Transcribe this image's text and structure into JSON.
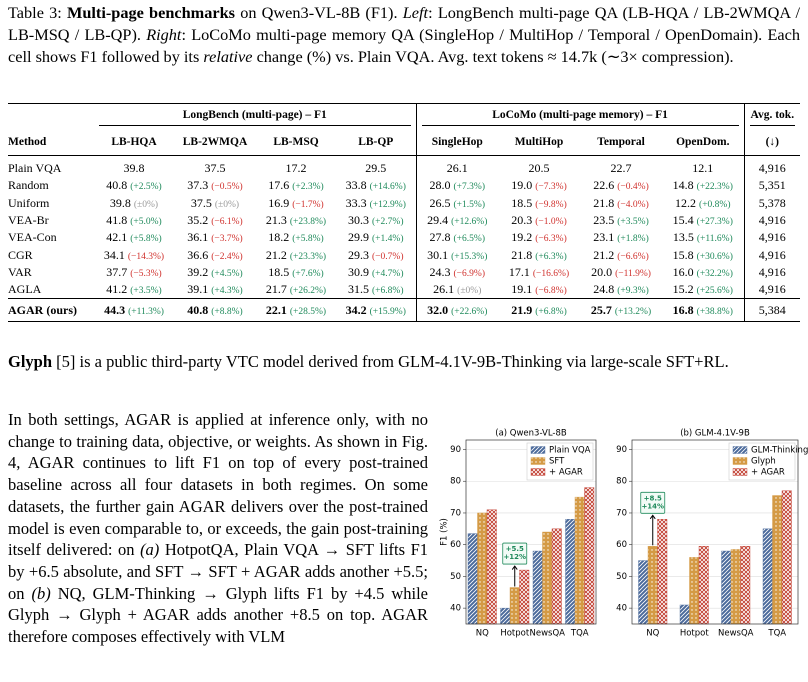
{
  "caption": [
    "Table 3: ",
    "Multi-page benchmarks",
    " on Qwen3-VL-8B (F1). ",
    "Left",
    ": LongBench multi-page QA (LB-HQA / LB-2WMQA / LB-MSQ / LB-QP). ",
    "Right",
    ": LoCoMo multi-page memory QA (SingleHop / MultiHop / Temporal / OpenDomain). Each cell shows F1 followed by its ",
    "relative",
    " change (%) vs. Plain VQA. Avg. text tokens ≈ 14.7k (∼3× compression)."
  ],
  "table": {
    "groups": [
      "LongBench (multi-page) – F1",
      "LoCoMo (multi-page memory) – F1",
      "Avg. tok."
    ],
    "columns": [
      "Method",
      "LB-HQA",
      "LB-2WMQA",
      "LB-MSQ",
      "LB-QP",
      "SingleHop",
      "MultiHop",
      "Temporal",
      "OpenDom.",
      "(↓)"
    ],
    "rows": [
      {
        "method": "Plain VQA",
        "cells": [
          {
            "f1": "39.8"
          },
          {
            "f1": "37.5"
          },
          {
            "f1": "17.2"
          },
          {
            "f1": "29.5"
          },
          {
            "f1": "26.1"
          },
          {
            "f1": "20.5"
          },
          {
            "f1": "22.7"
          },
          {
            "f1": "12.1"
          }
        ],
        "tokens": "4,916"
      },
      {
        "method": "Random",
        "cells": [
          {
            "f1": "40.8",
            "change": "(+2.5%)"
          },
          {
            "f1": "37.3",
            "change": "(−0.5%)"
          },
          {
            "f1": "17.6",
            "change": "(+2.3%)"
          },
          {
            "f1": "33.8",
            "change": "(+14.6%)"
          },
          {
            "f1": "28.0",
            "change": "(+7.3%)"
          },
          {
            "f1": "19.0",
            "change": "(−7.3%)"
          },
          {
            "f1": "22.6",
            "change": "(−0.4%)"
          },
          {
            "f1": "14.8",
            "change": "(+22.3%)"
          }
        ],
        "tokens": "5,351"
      },
      {
        "method": "Uniform",
        "cells": [
          {
            "f1": "39.8",
            "change": "(±0%)"
          },
          {
            "f1": "37.5",
            "change": "(±0%)"
          },
          {
            "f1": "16.9",
            "change": "(−1.7%)"
          },
          {
            "f1": "33.3",
            "change": "(+12.9%)"
          },
          {
            "f1": "26.5",
            "change": "(+1.5%)"
          },
          {
            "f1": "18.5",
            "change": "(−9.8%)"
          },
          {
            "f1": "21.8",
            "change": "(−4.0%)"
          },
          {
            "f1": "12.2",
            "change": "(+0.8%)"
          }
        ],
        "tokens": "5,378"
      },
      {
        "method": "VEA-Br",
        "cells": [
          {
            "f1": "41.8",
            "change": "(+5.0%)"
          },
          {
            "f1": "35.2",
            "change": "(−6.1%)"
          },
          {
            "f1": "21.3",
            "change": "(+23.8%)"
          },
          {
            "f1": "30.3",
            "change": "(+2.7%)"
          },
          {
            "f1": "29.4",
            "change": "(+12.6%)"
          },
          {
            "f1": "20.3",
            "change": "(−1.0%)"
          },
          {
            "f1": "23.5",
            "change": "(+3.5%)"
          },
          {
            "f1": "15.4",
            "change": "(+27.3%)"
          }
        ],
        "tokens": "4,916"
      },
      {
        "method": "VEA-Con",
        "cells": [
          {
            "f1": "42.1",
            "change": "(+5.8%)"
          },
          {
            "f1": "36.1",
            "change": "(−3.7%)"
          },
          {
            "f1": "18.2",
            "change": "(+5.8%)"
          },
          {
            "f1": "29.9",
            "change": "(+1.4%)"
          },
          {
            "f1": "27.8",
            "change": "(+6.5%)"
          },
          {
            "f1": "19.2",
            "change": "(−6.3%)"
          },
          {
            "f1": "23.1",
            "change": "(+1.8%)"
          },
          {
            "f1": "13.5",
            "change": "(+11.6%)"
          }
        ],
        "tokens": "4,916"
      },
      {
        "method": "CGR",
        "cells": [
          {
            "f1": "34.1",
            "change": "(−14.3%)"
          },
          {
            "f1": "36.6",
            "change": "(−2.4%)"
          },
          {
            "f1": "21.2",
            "change": "(+23.3%)"
          },
          {
            "f1": "29.3",
            "change": "(−0.7%)"
          },
          {
            "f1": "30.1",
            "change": "(+15.3%)"
          },
          {
            "f1": "21.8",
            "change": "(+6.3%)"
          },
          {
            "f1": "21.2",
            "change": "(−6.6%)"
          },
          {
            "f1": "15.8",
            "change": "(+30.6%)"
          }
        ],
        "tokens": "4,916"
      },
      {
        "method": "VAR",
        "cells": [
          {
            "f1": "37.7",
            "change": "(−5.3%)"
          },
          {
            "f1": "39.2",
            "change": "(+4.5%)"
          },
          {
            "f1": "18.5",
            "change": "(+7.6%)"
          },
          {
            "f1": "30.9",
            "change": "(+4.7%)"
          },
          {
            "f1": "24.3",
            "change": "(−6.9%)"
          },
          {
            "f1": "17.1",
            "change": "(−16.6%)"
          },
          {
            "f1": "20.0",
            "change": "(−11.9%)"
          },
          {
            "f1": "16.0",
            "change": "(+32.2%)"
          }
        ],
        "tokens": "4,916"
      },
      {
        "method": "AGLA",
        "cells": [
          {
            "f1": "41.2",
            "change": "(+3.5%)"
          },
          {
            "f1": "39.1",
            "change": "(+4.3%)"
          },
          {
            "f1": "21.7",
            "change": "(+26.2%)"
          },
          {
            "f1": "31.5",
            "change": "(+6.8%)"
          },
          {
            "f1": "26.1",
            "change": "(±0%)"
          },
          {
            "f1": "19.1",
            "change": "(−6.8%)"
          },
          {
            "f1": "24.8",
            "change": "(+9.3%)"
          },
          {
            "f1": "15.2",
            "change": "(+25.6%)"
          }
        ],
        "tokens": "4,916"
      },
      {
        "method": "AGAR (ours)",
        "cells": [
          {
            "f1": "44.3",
            "change": "(+11.3%)"
          },
          {
            "f1": "40.8",
            "change": "(+8.8%)"
          },
          {
            "f1": "22.1",
            "change": "(+28.5%)"
          },
          {
            "f1": "34.2",
            "change": "(+15.9%)"
          },
          {
            "f1": "32.0",
            "change": "(+22.6%)"
          },
          {
            "f1": "21.9",
            "change": "(+6.8%)"
          },
          {
            "f1": "25.7",
            "change": "(+13.2%)"
          },
          {
            "f1": "16.8",
            "change": "(+38.8%)"
          }
        ],
        "tokens": "5,384"
      }
    ]
  },
  "glyph_paragraph": [
    "Glyph",
    " [5] is a public third-party VTC model derived from GLM-4.1V-9B-Thinking via large-scale SFT+RL."
  ],
  "body_paragraph": [
    "In both settings, AGAR is applied at inference only, with no change to training data, objective, or weights. As shown in Fig. 4, AGAR continues to lift F1 on top of every post-trained baseline across all four datasets in both regimes. On some datasets, the further gain AGAR delivers over the post-trained model is even comparable to, or exceeds, the gain post-training itself delivered: on ",
    "(a)",
    " HotpotQA, Plain VQA → SFT lifts F1 by +6.5 absolute, and SFT → SFT + AGAR adds another +5.5; on ",
    "(b)",
    " NQ, GLM-Thinking → Glyph lifts F1 by +4.5 while Glyph → Glyph + AGAR adds another +8.5 on top. AGAR therefore composes effectively with VLM"
  ],
  "chart_data": [
    {
      "type": "bar",
      "title": "(a) Qwen3-VL-8B",
      "ylabel": "F1 (%)",
      "categories": [
        "NQ",
        "Hotpot",
        "NewsQA",
        "TQA"
      ],
      "series": [
        {
          "name": "Plain VQA",
          "color": "#4b6a9b",
          "values": [
            63.5,
            40,
            58,
            68
          ]
        },
        {
          "name": "SFT",
          "color": "#d49a45",
          "values": [
            70,
            46.5,
            64,
            75
          ]
        },
        {
          "name": "+ AGAR",
          "color": "#c0392b",
          "values": [
            71,
            52,
            65,
            78
          ]
        }
      ],
      "ylim": [
        35,
        93
      ],
      "yticks": [
        40,
        50,
        60,
        70,
        80,
        90
      ],
      "grid": true,
      "legend": "upper right",
      "annotations": [
        {
          "lines": [
            "+5.5",
            "+12%"
          ]
        }
      ]
    },
    {
      "type": "bar",
      "title": "(b) GLM-4.1V-9B",
      "categories": [
        "NQ",
        "Hotpot",
        "NewsQA",
        "TQA"
      ],
      "series": [
        {
          "name": "GLM-Thinking",
          "color": "#4b6a9b",
          "values": [
            55,
            41,
            58,
            65
          ]
        },
        {
          "name": "Glyph",
          "color": "#d49a45",
          "values": [
            59.5,
            56,
            58.5,
            75.5
          ]
        },
        {
          "name": "+ AGAR",
          "color": "#c0392b",
          "values": [
            68,
            59.5,
            59.5,
            77
          ]
        }
      ],
      "ylim": [
        35,
        93
      ],
      "yticks": [
        40,
        50,
        60,
        70,
        80,
        90
      ],
      "grid": true,
      "legend": "upper right",
      "annotations": [
        {
          "lines": [
            "+8.5",
            "+14%"
          ]
        }
      ]
    }
  ]
}
